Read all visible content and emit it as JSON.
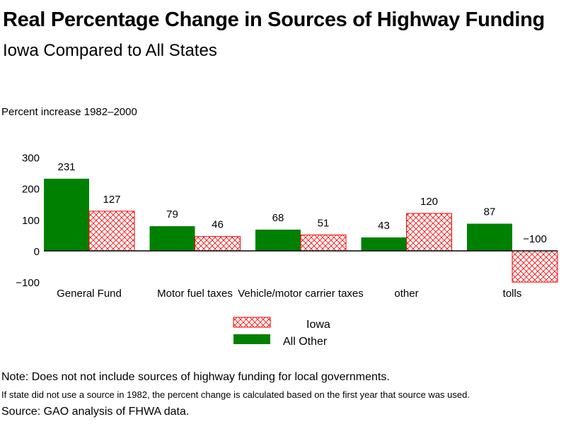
{
  "chart_data": {
    "type": "bar",
    "title": "Real Percentage Change in Sources of Highway Funding",
    "subtitle": "Iowa Compared to All States",
    "ylabel": "Percent increase  1982–2000",
    "xlabel": "",
    "ylim": [
      -100,
      300
    ],
    "yticks": [
      300,
      200,
      100,
      0,
      -100
    ],
    "ytick_labels": [
      "300",
      "200",
      "100",
      "0",
      "−100"
    ],
    "grid": false,
    "categories": [
      "General Fund",
      "Motor fuel taxes",
      "Vehicle/motor carrier taxes",
      "other",
      "tolls"
    ],
    "series": [
      {
        "name": "All Other",
        "color": "#008000",
        "pattern": "solid",
        "values": [
          231,
          79,
          68,
          43,
          87
        ]
      },
      {
        "name": "Iowa",
        "color": "#ff0000",
        "pattern": "crosshatch",
        "values": [
          127,
          46,
          51,
          120,
          -100
        ]
      }
    ],
    "legend": {
      "placement": "bottom-center",
      "entries": [
        "Iowa",
        "All Other"
      ]
    }
  },
  "notes": [
    "Note: Does not not include sources of highway funding for local governments.",
    "If state did not use a source in 1982, the percent change is calculated based on the first year that source was used.",
    "Source: GAO analysis of FHWA data."
  ]
}
